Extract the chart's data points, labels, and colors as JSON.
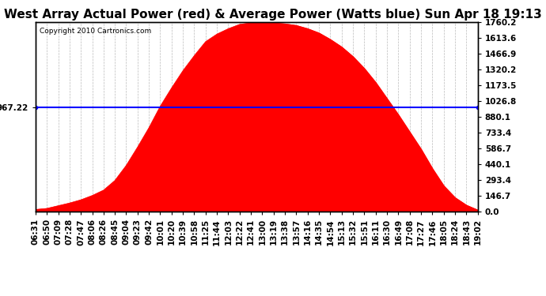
{
  "title": "West Array Actual Power (red) & Average Power (Watts blue) Sun Apr 18 19:13",
  "copyright": "Copyright 2010 Cartronics.com",
  "avg_power": 967.22,
  "y_max": 1760.2,
  "y_min": 0.0,
  "y_ticks_right": [
    0.0,
    146.7,
    293.4,
    440.1,
    586.7,
    733.4,
    880.1,
    1026.8,
    1173.5,
    1320.2,
    1466.9,
    1613.6,
    1760.2
  ],
  "x_labels": [
    "06:31",
    "06:50",
    "07:09",
    "07:28",
    "07:47",
    "08:06",
    "08:26",
    "08:45",
    "09:04",
    "09:23",
    "09:42",
    "10:01",
    "10:20",
    "10:39",
    "10:58",
    "11:25",
    "11:44",
    "12:03",
    "12:22",
    "12:41",
    "13:00",
    "13:19",
    "13:38",
    "13:57",
    "14:16",
    "14:35",
    "14:54",
    "15:13",
    "15:32",
    "15:51",
    "16:11",
    "16:30",
    "16:49",
    "17:08",
    "17:27",
    "17:46",
    "18:05",
    "18:24",
    "18:43",
    "19:02"
  ],
  "power_values": [
    20,
    30,
    55,
    80,
    110,
    150,
    200,
    290,
    430,
    600,
    780,
    980,
    1150,
    1310,
    1450,
    1580,
    1650,
    1700,
    1740,
    1755,
    1758,
    1755,
    1745,
    1730,
    1700,
    1660,
    1600,
    1530,
    1440,
    1330,
    1200,
    1050,
    900,
    740,
    580,
    400,
    240,
    130,
    60,
    15
  ],
  "background_color": "#ffffff",
  "plot_bg_color": "#ffffff",
  "grid_color": "#aaaaaa",
  "area_color": "#ff0000",
  "line_color": "#0000ff",
  "title_fontsize": 11,
  "tick_fontsize": 7.5,
  "copyright_fontsize": 6.5
}
